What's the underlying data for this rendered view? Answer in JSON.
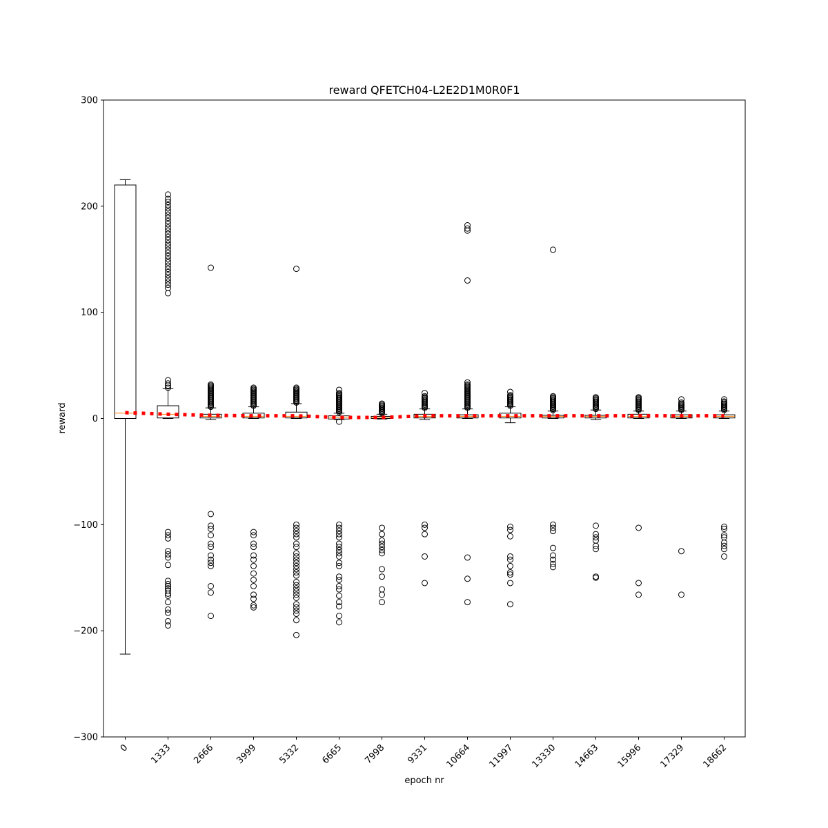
{
  "chart_data": {
    "type": "box",
    "title": "reward QFETCH04-L2E2D1M0R0F1",
    "xlabel": "epoch nr",
    "ylabel": "reward",
    "ylim": [
      -300,
      300
    ],
    "yticks": [
      -300,
      -200,
      -100,
      0,
      100,
      200,
      300
    ],
    "yticklabels": [
      "−300",
      "−200",
      "−100",
      "0",
      "100",
      "200",
      "300"
    ],
    "categories": [
      "0",
      "1333",
      "2666",
      "3999",
      "5332",
      "6665",
      "7998",
      "9331",
      "10664",
      "11997",
      "13330",
      "14663",
      "15996",
      "17329",
      "18662"
    ],
    "boxes": [
      {
        "q1": 0,
        "median": 5,
        "q3": 220,
        "whislo": -222,
        "whishi": 225,
        "fliers": []
      },
      {
        "q1": 0.5,
        "median": 4,
        "q3": 12,
        "whislo": 0,
        "whishi": 28,
        "fliers": [
          118,
          123,
          126,
          129,
          132,
          135,
          138,
          141,
          144,
          147,
          150,
          153,
          156,
          159,
          162,
          165,
          168,
          171,
          174,
          177,
          180,
          183,
          186,
          189,
          192,
          195,
          198,
          201,
          204,
          207,
          211,
          29,
          31,
          33,
          36,
          -107,
          -110,
          -113,
          -125,
          -128,
          -131,
          -138,
          -153,
          -156,
          -158,
          -160,
          -162,
          -165,
          -167,
          -173,
          -180,
          -183,
          -191,
          -195
        ]
      },
      {
        "q1": 0.5,
        "median": 2,
        "q3": 4,
        "whislo": -1,
        "whishi": 10,
        "fliers": [
          11,
          12,
          13,
          14,
          15,
          16,
          17,
          18,
          19,
          20,
          21,
          22,
          23,
          24,
          25,
          26,
          27,
          28,
          29,
          30,
          31,
          32,
          142,
          -90,
          -101,
          -104,
          -110,
          -118,
          -121,
          -129,
          -133,
          -136,
          -139,
          -158,
          -164,
          -186
        ]
      },
      {
        "q1": 0.5,
        "median": 2,
        "q3": 5,
        "whislo": 0,
        "whishi": 11,
        "fliers": [
          12,
          13,
          14,
          15,
          16,
          17,
          18,
          19,
          20,
          21,
          22,
          23,
          24,
          25,
          26,
          27,
          28,
          29,
          -107,
          -110,
          -118,
          -121,
          -129,
          -133,
          -139,
          -146,
          -152,
          -158,
          -166,
          -170,
          -176,
          -178
        ]
      },
      {
        "q1": 0.5,
        "median": 2,
        "q3": 6,
        "whislo": 0,
        "whishi": 14,
        "fliers": [
          15,
          16,
          17,
          18,
          19,
          20,
          21,
          22,
          23,
          24,
          25,
          26,
          27,
          28,
          29,
          141,
          -100,
          -103,
          -106,
          -109,
          -112,
          -118,
          -121,
          -127,
          -130,
          -133,
          -136,
          -139,
          -142,
          -145,
          -148,
          -154,
          -157,
          -160,
          -163,
          -166,
          -169,
          -175,
          -178,
          -181,
          -184,
          -190,
          -204
        ]
      },
      {
        "q1": -0.5,
        "median": 1,
        "q3": 2.5,
        "whislo": -1,
        "whishi": 5,
        "fliers": [
          6,
          7,
          8,
          9,
          10,
          11,
          12,
          13,
          14,
          15,
          16,
          17,
          18,
          19,
          20,
          21,
          22,
          23,
          24,
          27,
          -3,
          -100,
          -103,
          -106,
          -109,
          -112,
          -118,
          -121,
          -124,
          -127,
          -130,
          -136,
          -139,
          -149,
          -152,
          -158,
          -161,
          -167,
          -173,
          -177,
          -186,
          -192
        ]
      },
      {
        "q1": 0,
        "median": 1,
        "q3": 2,
        "whislo": -0.5,
        "whishi": 4,
        "fliers": [
          5,
          6,
          7,
          8,
          9,
          10,
          11,
          12,
          13,
          14,
          -103,
          -109,
          -115,
          -118,
          -121,
          -124,
          -127,
          -142,
          -149,
          -161,
          -166,
          -173
        ]
      },
      {
        "q1": 0.5,
        "median": 2,
        "q3": 4,
        "whislo": -1,
        "whishi": 9,
        "fliers": [
          10,
          11,
          12,
          13,
          14,
          15,
          16,
          17,
          18,
          19,
          20,
          21,
          24,
          -100,
          -103,
          -109,
          -130,
          -155
        ]
      },
      {
        "q1": 0.5,
        "median": 2,
        "q3": 3.5,
        "whislo": 0,
        "whishi": 9,
        "fliers": [
          10,
          11,
          12,
          13,
          14,
          15,
          16,
          17,
          18,
          19,
          20,
          21,
          22,
          23,
          24,
          25,
          26,
          27,
          28,
          29,
          30,
          31,
          32,
          34,
          130,
          177,
          179,
          182,
          -131,
          -151,
          -173
        ]
      },
      {
        "q1": 0.5,
        "median": 2,
        "q3": 5,
        "whislo": -4,
        "whishi": 11,
        "fliers": [
          12,
          13,
          14,
          15,
          16,
          17,
          18,
          19,
          20,
          21,
          22,
          25,
          -102,
          -105,
          -111,
          -130,
          -133,
          -139,
          -145,
          -147,
          -155,
          -175
        ]
      },
      {
        "q1": 0.5,
        "median": 2,
        "q3": 3,
        "whislo": 0,
        "whishi": 7,
        "fliers": [
          8,
          9,
          10,
          11,
          12,
          13,
          14,
          15,
          16,
          17,
          18,
          19,
          20,
          21,
          159,
          -100,
          -103,
          -106,
          -122,
          -129,
          -133,
          -137,
          -140
        ]
      },
      {
        "q1": 0.5,
        "median": 2,
        "q3": 3,
        "whislo": -1,
        "whishi": 8,
        "fliers": [
          9,
          10,
          11,
          12,
          13,
          14,
          15,
          16,
          17,
          18,
          19,
          20,
          -101,
          -109,
          -112,
          -115,
          -120,
          -123,
          -149,
          -150
        ]
      },
      {
        "q1": 0.5,
        "median": 2,
        "q3": 4,
        "whislo": 0,
        "whishi": 7,
        "fliers": [
          8,
          9,
          10,
          11,
          12,
          13,
          14,
          15,
          16,
          17,
          18,
          19,
          20,
          -103,
          -155,
          -166
        ]
      },
      {
        "q1": 0.5,
        "median": 2,
        "q3": 3.5,
        "whislo": 0,
        "whishi": 7,
        "fliers": [
          8,
          9,
          10,
          11,
          12,
          13,
          14,
          15,
          18,
          -125,
          -166
        ]
      },
      {
        "q1": 0.5,
        "median": 2,
        "q3": 3.5,
        "whislo": 0,
        "whishi": 7,
        "fliers": [
          8,
          9,
          10,
          11,
          12,
          13,
          14,
          15,
          16,
          18,
          -102,
          -104,
          -110,
          -112,
          -117,
          -120,
          -123,
          -130
        ]
      }
    ],
    "mean_line": {
      "values": [
        5.5,
        4,
        3,
        2.5,
        2.5,
        1,
        1,
        2.5,
        2.5,
        2.5,
        2.5,
        2.5,
        2.5,
        2.5,
        2.5
      ],
      "style": "dotted",
      "color": "#ff0000"
    },
    "median_color": "#ff7f0e",
    "grid": false,
    "xtick_rotation": 45
  }
}
